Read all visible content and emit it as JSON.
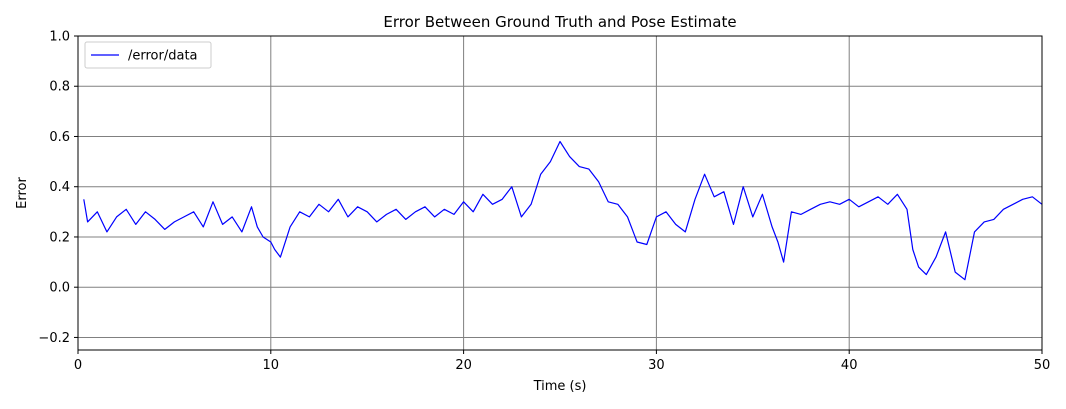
{
  "chart_data": {
    "type": "line",
    "title": "Error Between Ground Truth and Pose Estimate",
    "xlabel": "Time (s)",
    "ylabel": "Error",
    "xlim": [
      0,
      50
    ],
    "ylim": [
      -0.25,
      1.0
    ],
    "xticks": [
      0,
      10,
      20,
      30,
      40,
      50
    ],
    "yticks": [
      -0.2,
      0.0,
      0.2,
      0.4,
      0.6,
      0.8,
      1.0
    ],
    "xtick_labels": [
      "0",
      "10",
      "20",
      "30",
      "40",
      "50"
    ],
    "ytick_labels": [
      "−0.2",
      "0.0",
      "0.2",
      "0.4",
      "0.6",
      "0.8",
      "1.0"
    ],
    "grid": true,
    "legend_position": "top-left",
    "series": [
      {
        "name": "/error/data",
        "color": "#0000ff",
        "x": [
          0.3,
          0.5,
          1.0,
          1.5,
          2.0,
          2.5,
          3.0,
          3.5,
          4.0,
          4.5,
          5.0,
          5.5,
          6.0,
          6.5,
          7.0,
          7.5,
          8.0,
          8.5,
          9.0,
          9.3,
          9.6,
          10.0,
          10.2,
          10.5,
          11.0,
          11.5,
          12.0,
          12.5,
          13.0,
          13.5,
          14.0,
          14.5,
          15.0,
          15.5,
          16.0,
          16.5,
          17.0,
          17.5,
          18.0,
          18.5,
          19.0,
          19.5,
          20.0,
          20.5,
          21.0,
          21.5,
          22.0,
          22.5,
          23.0,
          23.5,
          24.0,
          24.5,
          25.0,
          25.5,
          26.0,
          26.5,
          27.0,
          27.5,
          28.0,
          28.5,
          29.0,
          29.5,
          30.0,
          30.5,
          31.0,
          31.5,
          32.0,
          32.5,
          33.0,
          33.5,
          34.0,
          34.5,
          35.0,
          35.5,
          36.0,
          36.3,
          36.6,
          37.0,
          37.5,
          38.0,
          38.5,
          39.0,
          39.5,
          40.0,
          40.5,
          41.0,
          41.5,
          42.0,
          42.5,
          43.0,
          43.3,
          43.6,
          44.0,
          44.5,
          45.0,
          45.5,
          46.0,
          46.5,
          47.0,
          47.5,
          48.0,
          48.5,
          49.0,
          49.5,
          50.0
        ],
        "y": [
          0.35,
          0.26,
          0.3,
          0.22,
          0.28,
          0.31,
          0.25,
          0.3,
          0.27,
          0.23,
          0.26,
          0.28,
          0.3,
          0.24,
          0.34,
          0.25,
          0.28,
          0.22,
          0.32,
          0.24,
          0.2,
          0.18,
          0.15,
          0.12,
          0.24,
          0.3,
          0.28,
          0.33,
          0.3,
          0.35,
          0.28,
          0.32,
          0.3,
          0.26,
          0.29,
          0.31,
          0.27,
          0.3,
          0.32,
          0.28,
          0.31,
          0.29,
          0.34,
          0.3,
          0.37,
          0.33,
          0.35,
          0.4,
          0.28,
          0.33,
          0.45,
          0.5,
          0.58,
          0.52,
          0.48,
          0.47,
          0.42,
          0.34,
          0.33,
          0.28,
          0.18,
          0.17,
          0.28,
          0.3,
          0.25,
          0.22,
          0.35,
          0.45,
          0.36,
          0.38,
          0.25,
          0.4,
          0.28,
          0.37,
          0.24,
          0.18,
          0.1,
          0.3,
          0.29,
          0.31,
          0.33,
          0.34,
          0.33,
          0.35,
          0.32,
          0.34,
          0.36,
          0.33,
          0.37,
          0.31,
          0.15,
          0.08,
          0.05,
          0.12,
          0.22,
          0.06,
          0.03,
          0.22,
          0.26,
          0.27,
          0.31,
          0.33,
          0.35,
          0.36,
          0.33
        ]
      }
    ]
  }
}
